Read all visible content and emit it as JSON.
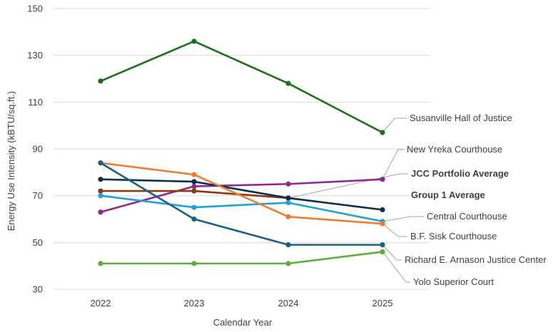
{
  "chart_data": {
    "type": "line",
    "title": "",
    "xlabel": "Calendar Year",
    "ylabel": "Energy Use Intensity (kBTU/sq.ft.)",
    "categories": [
      "2022",
      "2023",
      "2024",
      "2025"
    ],
    "ylim": [
      30,
      150
    ],
    "yticks": [
      30,
      50,
      70,
      90,
      110,
      130,
      150
    ],
    "grid": "horizontal",
    "legend": "none (series labeled at line ends)",
    "series": [
      {
        "name": "Susanville Hall of Justice",
        "color": "#1e6e1e",
        "values": [
          119,
          136,
          118,
          97
        ],
        "bold": false
      },
      {
        "name": "New Yreka Courthouse",
        "color": "#8e2a8f",
        "values": [
          63,
          74,
          75,
          77
        ],
        "bold": false
      },
      {
        "name": "JCC Portfolio Average",
        "color": "#8b3a12",
        "values": [
          72,
          72,
          69,
          null
        ],
        "bold": true
      },
      {
        "name": "Group 1 Average",
        "color": "#0f3046",
        "values": [
          77,
          76,
          69,
          64
        ],
        "bold": true
      },
      {
        "name": "Central Courthouse",
        "color": "#1fa0d8",
        "values": [
          70,
          65,
          67,
          59
        ],
        "bold": false
      },
      {
        "name": "B.F. Sisk Courthouse",
        "color": "#ee7d31",
        "values": [
          84,
          79,
          61,
          58
        ],
        "bold": false
      },
      {
        "name": "Richard E. Arnason Justice Center",
        "color": "#1b5f82",
        "values": [
          84,
          60,
          49,
          49
        ],
        "bold": false
      },
      {
        "name": "Yolo Superior Court",
        "color": "#5cad3c",
        "values": [
          41,
          41,
          41,
          46
        ],
        "bold": false
      }
    ]
  }
}
